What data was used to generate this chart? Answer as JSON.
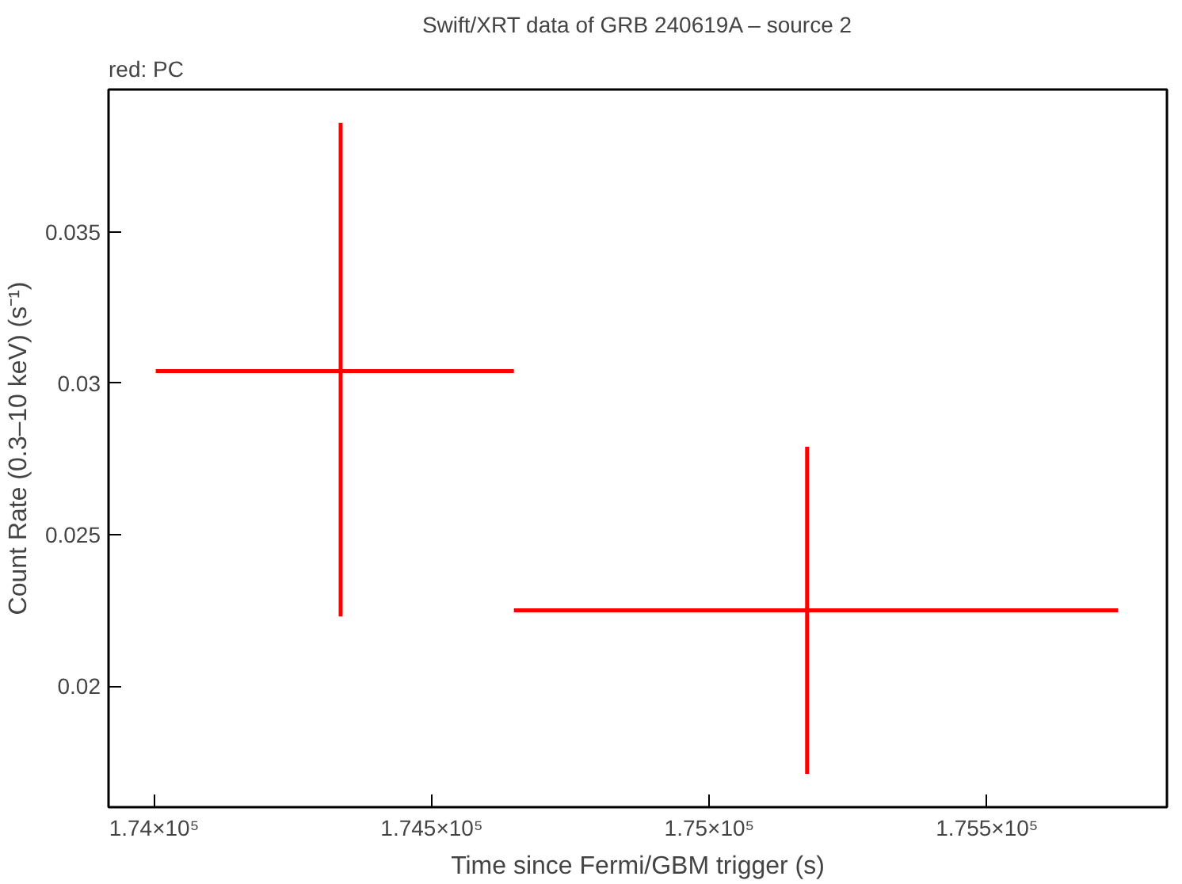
{
  "chart_data": {
    "type": "scatter",
    "title": "Swift/XRT data of GRB 240619A – source 2",
    "annotations": [
      "red: PC"
    ],
    "xlabel": "Time since Fermi/GBM trigger (s)",
    "ylabel": "Count Rate (0.3–10 keV) (s⁻¹)",
    "marker": "none",
    "grid": false,
    "x": [
      174336,
      175176
    ],
    "series": [
      {
        "color": "#ff0000",
        "values": [
          0.0304,
          0.0225
        ],
        "errors": [
          [
            0.0223,
            0.0386
          ],
          [
            0.0171,
            0.0279
          ]
        ],
        "xerrors": [
          [
            174003,
            174648
          ],
          [
            174648,
            175736
          ]
        ]
      }
    ],
    "xlim": [
      173918,
      175824
    ],
    "ylim": [
      0.016,
      0.0397
    ],
    "xticks": [
      {
        "value": 174000,
        "label": "1.74×10⁵"
      },
      {
        "value": 174500,
        "label": "1.745×10⁵"
      },
      {
        "value": 175000,
        "label": "1.75×10⁵"
      },
      {
        "value": 175500,
        "label": "1.755×10⁵"
      }
    ],
    "yticks": [
      0.02,
      0.025,
      0.03,
      0.035
    ]
  }
}
